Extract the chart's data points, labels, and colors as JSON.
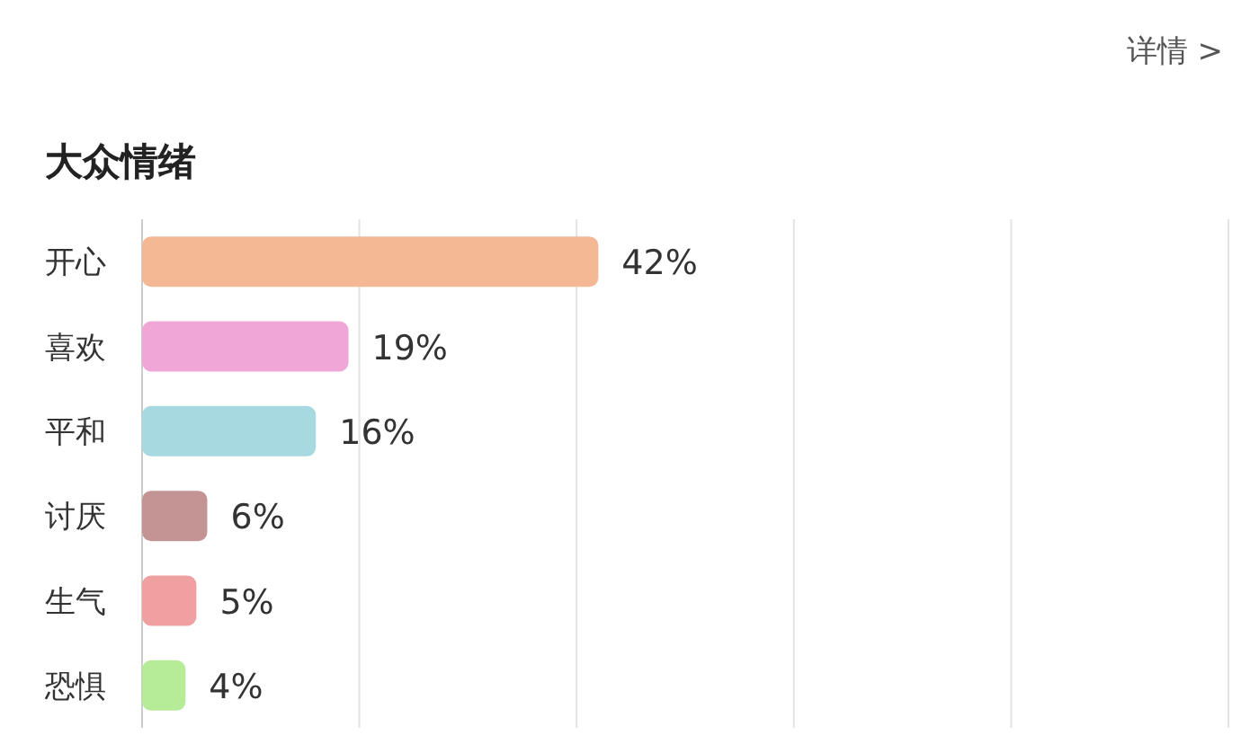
{
  "chart_data": {
    "type": "bar",
    "orientation": "horizontal",
    "title": "大众情绪",
    "annotations": [
      "详情 >"
    ],
    "categories": [
      "开心",
      "喜欢",
      "平和",
      "讨厌",
      "生气",
      "恐惧"
    ],
    "values": [
      42,
      19,
      16,
      6,
      5,
      4
    ],
    "colors": [
      "#f4b894",
      "#f0a6d6",
      "#a6d9e0",
      "#c49494",
      "#f0a0a0",
      "#b6ec98"
    ],
    "value_labels": [
      "42%",
      "19%",
      "16%",
      "6%",
      "5%",
      "4%"
    ],
    "xlim": [
      0,
      100
    ],
    "xticks": [
      {
        "value": 0,
        "label": null
      },
      {
        "value": 20,
        "label": null
      },
      {
        "value": 40,
        "label": null
      },
      {
        "value": 60,
        "label": null
      },
      {
        "value": 80,
        "label": null
      },
      {
        "value": 100,
        "label": null
      }
    ],
    "grid": "x"
  }
}
